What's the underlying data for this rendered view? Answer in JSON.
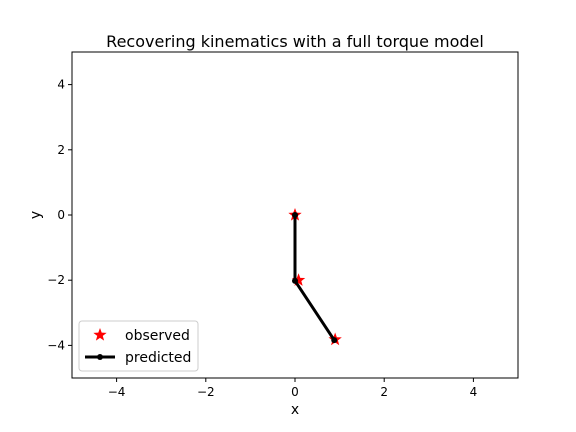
{
  "chart_data": {
    "type": "line",
    "title": "Recovering kinematics with a full torque model",
    "xlabel": "x",
    "ylabel": "y",
    "xlim": [
      -5,
      5
    ],
    "ylim": [
      -5,
      5
    ],
    "xticks": [
      -4,
      -2,
      0,
      2,
      4
    ],
    "yticks": [
      -4,
      -2,
      0,
      2,
      4
    ],
    "grid": false,
    "legend_position": "lower-left",
    "series": [
      {
        "name": "observed",
        "marker": "star",
        "color": "#ff0000",
        "points": [
          [
            0.0,
            0.0
          ],
          [
            0.08,
            -2.0
          ],
          [
            0.9,
            -3.82
          ]
        ]
      },
      {
        "name": "predicted",
        "marker": "circle",
        "color": "#000000",
        "line": true,
        "points": [
          [
            0.0,
            0.0
          ],
          [
            0.0,
            -2.02
          ],
          [
            0.88,
            -3.84
          ]
        ]
      }
    ]
  }
}
